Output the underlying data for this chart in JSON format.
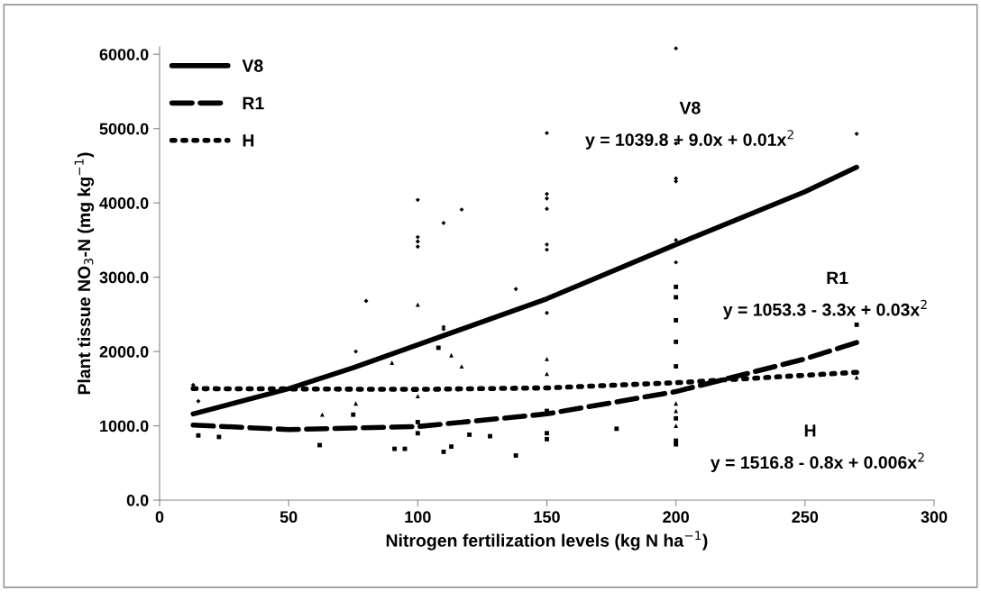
{
  "chart_data": {
    "type": "scatter",
    "xlabel": "Nitrogen fertilization levels (kg N ha$^{−1}$)",
    "ylabel": "Plant tissue NO$_{3}$-N (mg kg$^{−1}$)",
    "xlim": [
      0,
      300
    ],
    "xticks": [
      0,
      50,
      100,
      150,
      200,
      250,
      300
    ],
    "ylim": [
      0,
      6100
    ],
    "yticks": [
      {
        "value": 0,
        "label": "0.0"
      },
      {
        "value": 1000,
        "label": "1000.0"
      },
      {
        "value": 2000,
        "label": "2000.0"
      },
      {
        "value": 3000,
        "label": "3000.0"
      },
      {
        "value": 4000,
        "label": "4000.0"
      },
      {
        "value": 5000,
        "label": "5000.0"
      },
      {
        "value": 6000,
        "label": "6000.0"
      }
    ],
    "grid": false,
    "legend": "top left",
    "series": [
      {
        "type": "line",
        "name": "V8",
        "color": "#000000",
        "line_style": "solid",
        "marker": "none",
        "x": [
          13,
          50,
          75,
          100,
          150,
          200,
          250,
          270
        ],
        "values": [
          1160,
          1500,
          1780,
          2090,
          2710,
          3440,
          4150,
          4480
        ]
      },
      {
        "type": "line",
        "name": "R1",
        "color": "#000000",
        "line_style": "dashed",
        "marker": "none",
        "x": [
          13,
          50,
          100,
          150,
          200,
          250,
          270
        ],
        "values": [
          1010,
          950,
          990,
          1160,
          1460,
          1900,
          2120
        ]
      },
      {
        "type": "line",
        "name": "H",
        "color": "#000000",
        "line_style": "dotted",
        "marker": "none",
        "x": [
          13,
          100,
          150,
          200,
          250,
          270
        ],
        "values": [
          1500,
          1490,
          1510,
          1580,
          1680,
          1720
        ]
      },
      {
        "color": "#000000",
        "marker": "diamond",
        "x": [
          200,
          200,
          200,
          200,
          200,
          270,
          150,
          150,
          150,
          150,
          150,
          150,
          100,
          100,
          100,
          100,
          110,
          110,
          110,
          117,
          80,
          138,
          76,
          150,
          200,
          13,
          15
        ],
        "values": [
          6080,
          4800,
          4330,
          4290,
          3500,
          4930,
          4940,
          4120,
          4060,
          3920,
          3440,
          3370,
          4040,
          3540,
          3480,
          3410,
          3730,
          2330,
          2300,
          3910,
          2680,
          2840,
          2000,
          2520,
          3200,
          1550,
          1330
        ]
      },
      {
        "color": "#000000",
        "marker": "square",
        "x": [
          200,
          200,
          200,
          200,
          200,
          200,
          200,
          200,
          150,
          150,
          150,
          270,
          15,
          23,
          62,
          91,
          95,
          110,
          113,
          138,
          177,
          128,
          120,
          75,
          100,
          100,
          108
        ],
        "values": [
          2870,
          2730,
          2420,
          2130,
          1800,
          1100,
          800,
          750,
          1200,
          900,
          820,
          2360,
          870,
          850,
          740,
          690,
          690,
          650,
          720,
          600,
          960,
          860,
          880,
          1150,
          1050,
          900,
          2050
        ]
      },
      {
        "color": "#000000",
        "marker": "triangle",
        "x": [
          270,
          100,
          100,
          150,
          150,
          200,
          200,
          113,
          117,
          90,
          76,
          63,
          200
        ],
        "values": [
          1650,
          2630,
          1400,
          1900,
          1700,
          1300,
          1200,
          1950,
          1800,
          1850,
          1300,
          1150,
          1000
        ]
      }
    ],
    "annotations": [
      "V8",
      "y = 1039.8 + 9.0x + 0.01x$^{2}$",
      "R1",
      "y = 1053.3 - 3.3x + 0.03x$^{2}$",
      "H",
      "y = 1516.8 - 0.8x + 0.006x$^{2}$"
    ]
  }
}
